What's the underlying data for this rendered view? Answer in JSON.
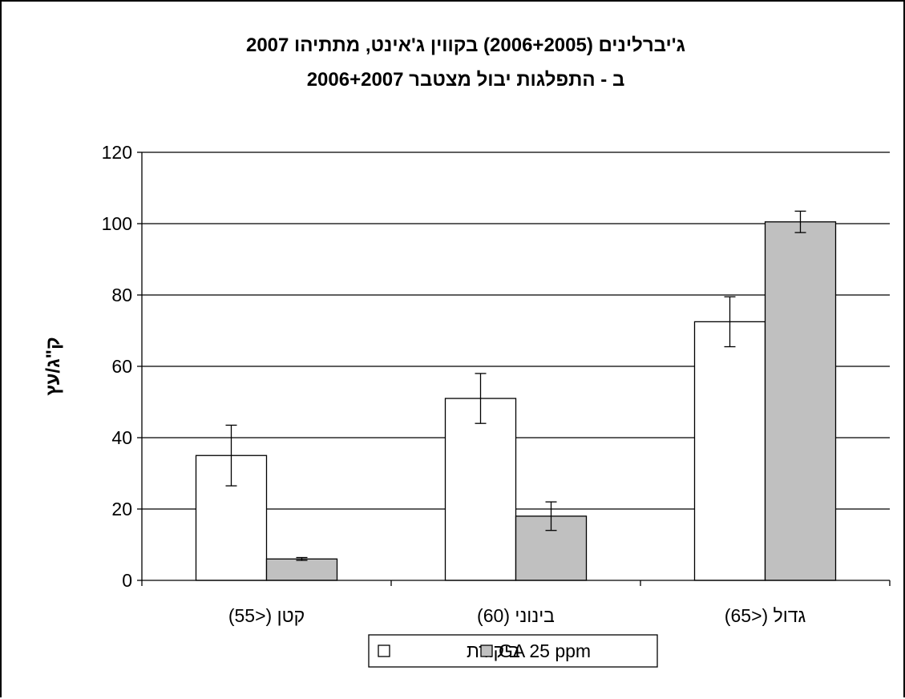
{
  "chart_data": {
    "type": "bar",
    "title_line1": "ג'יברלינים (2006+2005) בקווין ג'אינט, מתתיהו 2007",
    "title_line2": "ב - התפלגות יבול מצטבר 2006+2007",
    "xlabel": "",
    "ylabel": "ק\"ג/עץ",
    "ylim": [
      0,
      120
    ],
    "yticks": [
      0,
      20,
      40,
      60,
      80,
      100,
      120
    ],
    "grid": true,
    "legend_position": "bottom",
    "categories": [
      "קטן (<55)",
      "בינוני (60)",
      "גדול (<65)"
    ],
    "series": [
      {
        "name": "ביקורת",
        "values": [
          35,
          51,
          72.5
        ],
        "errors": [
          8.5,
          7,
          7
        ],
        "color": "#ffffff"
      },
      {
        "name": "GA 25 ppm",
        "values": [
          6,
          18,
          100.5
        ],
        "errors": [
          0.4,
          4,
          3
        ],
        "color": "#c0c0c0"
      }
    ]
  }
}
